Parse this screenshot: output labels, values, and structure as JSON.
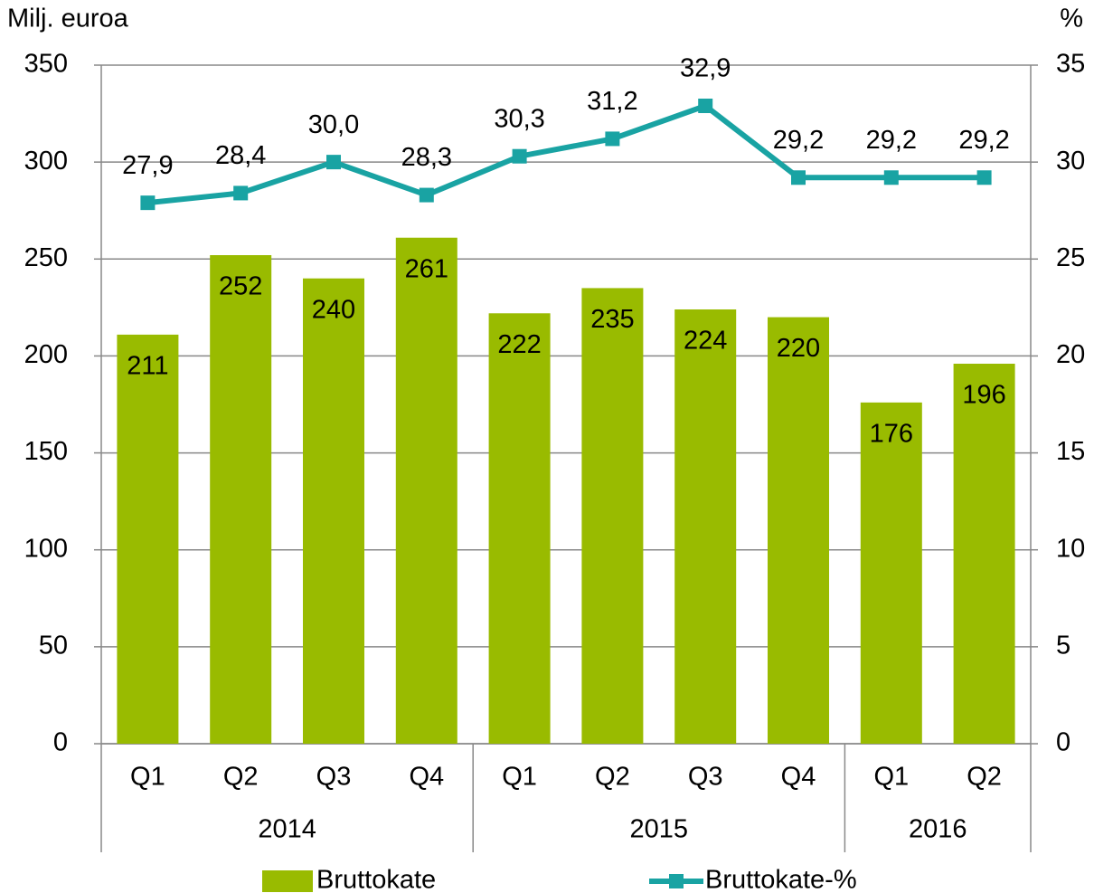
{
  "chart_data": {
    "type": "bar",
    "y_label": "Milj. euroa",
    "y2_label": "%",
    "categories": [
      "Q1",
      "Q2",
      "Q3",
      "Q4",
      "Q1",
      "Q2",
      "Q3",
      "Q4",
      "Q1",
      "Q2"
    ],
    "category_groups": [
      {
        "name": "2014",
        "count": 4
      },
      {
        "name": "2015",
        "count": 4
      },
      {
        "name": "2016",
        "count": 2
      }
    ],
    "series": [
      {
        "name": "Bruttokate",
        "type": "bar",
        "color": "#99bb00",
        "values": [
          211,
          252,
          240,
          261,
          222,
          235,
          224,
          220,
          176,
          196
        ]
      },
      {
        "name": "Bruttokate-%",
        "type": "line",
        "axis": "y2",
        "color": "#19a3a3",
        "values": [
          27.9,
          28.4,
          30.0,
          28.3,
          30.3,
          31.2,
          32.9,
          29.2,
          29.2,
          29.2
        ],
        "value_labels": [
          "27,9",
          "28,4",
          "30,0",
          "28,3",
          "30,3",
          "31,2",
          "32,9",
          "29,2",
          "29,2",
          "29,2"
        ]
      }
    ],
    "ylim": [
      0,
      350
    ],
    "yticks": [
      0,
      50,
      100,
      150,
      200,
      250,
      300,
      350
    ],
    "y2lim": [
      0,
      35
    ],
    "y2ticks": [
      0,
      5,
      10,
      15,
      20,
      25,
      30,
      35
    ],
    "grid": true,
    "legend": "bottom"
  }
}
